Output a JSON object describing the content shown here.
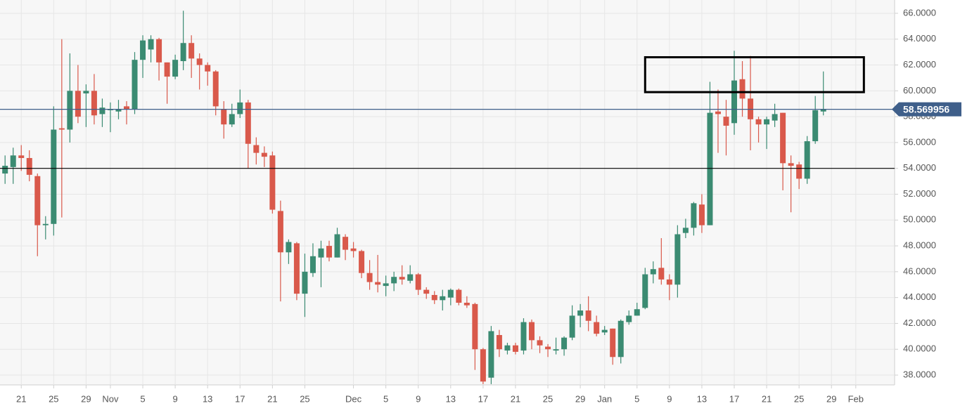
{
  "chart_data": {
    "type": "candlestick",
    "x": [
      "Oct 19",
      "Oct 20",
      "Oct 21",
      "Oct 22",
      "Oct 23",
      "Oct 24",
      "Oct 25",
      "Oct 26",
      "Oct 27",
      "Oct 28",
      "Oct 29",
      "Oct 30",
      "Oct 31",
      "Nov 1",
      "Nov 2",
      "Nov 3",
      "Nov 4",
      "Nov 5",
      "Nov 6",
      "Nov 7",
      "Nov 8",
      "Nov 9",
      "Nov 10",
      "Nov 11",
      "Nov 12",
      "Nov 13",
      "Nov 14",
      "Nov 15",
      "Nov 16",
      "Nov 17",
      "Nov 18",
      "Nov 19",
      "Nov 20",
      "Nov 21",
      "Nov 22",
      "Nov 23",
      "Nov 24",
      "Nov 25",
      "Nov 26",
      "Nov 27",
      "Nov 28",
      "Nov 29",
      "Nov 30",
      "Dec 1",
      "Dec 2",
      "Dec 3",
      "Dec 4",
      "Dec 5",
      "Dec 6",
      "Dec 7",
      "Dec 8",
      "Dec 9",
      "Dec 10",
      "Dec 11",
      "Dec 12",
      "Dec 13",
      "Dec 14",
      "Dec 15",
      "Dec 16",
      "Dec 17",
      "Dec 18",
      "Dec 19",
      "Dec 20",
      "Dec 21",
      "Dec 22",
      "Dec 23",
      "Dec 24",
      "Dec 25",
      "Dec 26",
      "Dec 27",
      "Dec 28",
      "Dec 29",
      "Dec 30",
      "Dec 31",
      "Jan 1",
      "Jan 2",
      "Jan 3",
      "Jan 4",
      "Jan 5",
      "Jan 6",
      "Jan 7",
      "Jan 8",
      "Jan 9",
      "Jan 10",
      "Jan 11",
      "Jan 12",
      "Jan 13",
      "Jan 14",
      "Jan 15",
      "Jan 16",
      "Jan 17",
      "Jan 18",
      "Jan 19",
      "Jan 20",
      "Jan 21",
      "Jan 22",
      "Jan 23",
      "Jan 24",
      "Jan 25",
      "Jan 26",
      "Jan 27",
      "Jan 28"
    ],
    "open": [
      53.6,
      54.1,
      55,
      54.8,
      53.4,
      49.6,
      49.7,
      57.1,
      57,
      60,
      59.8,
      60,
      58.2,
      58.5,
      58.4,
      58.8,
      58.6,
      62.4,
      63.2,
      64,
      62.2,
      61.1,
      62.3,
      63.7,
      62.5,
      62,
      61.5,
      58.6,
      57.4,
      58.2,
      59.1,
      55.8,
      55.2,
      55,
      50.7,
      47.5,
      48.2,
      44.3,
      45.9,
      47.1,
      48,
      47.1,
      48.7,
      47.8,
      47.6,
      45.9,
      45.2,
      44.9,
      45.1,
      45.6,
      45.3,
      45.8,
      44.6,
      44.2,
      43.8,
      44,
      44.6,
      43.6,
      43.5,
      40,
      37.8,
      41.1,
      39.9,
      40.3,
      39.9,
      42.1,
      40.7,
      40.2,
      39.9,
      40,
      40.9,
      42.6,
      43,
      42.1,
      41.3,
      41.6,
      39.4,
      42.1,
      42.6,
      43.2,
      45.8,
      46.3,
      45.4,
      45,
      49,
      49.4,
      51.2,
      49.6,
      58.4,
      58,
      57.5,
      60.9,
      59.4,
      57.8,
      57.4,
      57.7,
      58.3,
      54.4,
      54.3,
      53.2,
      56.1,
      58.4
    ],
    "high": [
      55,
      55.6,
      55.8,
      55.4,
      53.6,
      50.3,
      58.8,
      64,
      62.9,
      62,
      60.5,
      61.3,
      59.4,
      59.1,
      59.3,
      59.2,
      63,
      64.3,
      64.3,
      64.1,
      62.2,
      62.8,
      66.2,
      64.3,
      62.9,
      62.2,
      61.6,
      59.2,
      59,
      60.1,
      59.3,
      56.4,
      55.7,
      55.3,
      51.5,
      48.5,
      48.3,
      47.4,
      48.2,
      48.4,
      48.4,
      49.4,
      48.9,
      48.3,
      47.7,
      46.9,
      47.3,
      45.7,
      46,
      46.5,
      46.5,
      45.9,
      44.8,
      44.5,
      44.6,
      44.7,
      44.7,
      44.1,
      43.6,
      40.1,
      41.8,
      41.5,
      40.5,
      40.5,
      42.4,
      42.3,
      41,
      40.4,
      40.9,
      41,
      43.4,
      43.5,
      44.1,
      42.6,
      41.8,
      41.6,
      42.3,
      43,
      43.6,
      46.3,
      46.8,
      48.6,
      45.8,
      49.6,
      50.1,
      51.4,
      52,
      60.7,
      60.1,
      59.3,
      63.1,
      62.3,
      62.7,
      58,
      58,
      59,
      58.3,
      55,
      54.5,
      56.5,
      59.6,
      61.5
    ],
    "low": [
      52.8,
      52.8,
      53.8,
      53,
      47.2,
      48.5,
      48.8,
      50.2,
      56,
      57.5,
      57.2,
      57.4,
      57.2,
      56.8,
      57.8,
      57.4,
      58.2,
      61,
      62.2,
      60.8,
      59,
      60.9,
      61.6,
      61,
      60.1,
      60.4,
      58.1,
      56.3,
      57.2,
      57.9,
      54,
      54.3,
      54.1,
      50.5,
      43.7,
      46.6,
      43.8,
      42.5,
      45.6,
      44.8,
      46.8,
      47.1,
      46.9,
      47.1,
      45.5,
      44.6,
      44.4,
      44.1,
      44.5,
      45,
      45.1,
      44.2,
      43.9,
      43.5,
      43,
      43.4,
      43.4,
      43.2,
      38.4,
      37.3,
      37.3,
      39.4,
      39.6,
      39.6,
      39.6,
      40,
      39.7,
      39.4,
      39.6,
      39.5,
      40.7,
      41.7,
      41.4,
      41,
      41.1,
      38.8,
      38.9,
      41.9,
      42.6,
      43.1,
      45.1,
      45,
      43.8,
      44,
      48.6,
      48.8,
      49,
      49.6,
      55.2,
      55,
      56.6,
      58,
      55.4,
      56,
      55.5,
      57.2,
      52.3,
      50.6,
      52.4,
      52.8,
      55.9,
      58.1
    ],
    "close": [
      54.2,
      55,
      54.8,
      53.5,
      49.6,
      49.7,
      57,
      57,
      60,
      58,
      60,
      58.1,
      58.7,
      58.6,
      58.6,
      58.6,
      62.4,
      63.9,
      64,
      62.2,
      61.1,
      62.4,
      63.7,
      62.5,
      62,
      61.5,
      58.8,
      57.4,
      58.2,
      59.1,
      55.9,
      55.2,
      54.9,
      50.8,
      47.5,
      48.3,
      44.3,
      46,
      47.2,
      47.8,
      47.1,
      48.9,
      47.7,
      47.6,
      45.9,
      45.2,
      45,
      45.1,
      45.6,
      45.4,
      45.8,
      44.6,
      44.3,
      43.8,
      44.1,
      44.6,
      43.6,
      43.4,
      40,
      37.5,
      41.4,
      40,
      40.3,
      39.8,
      42.1,
      40.7,
      40.3,
      40,
      40,
      40.9,
      42.6,
      43,
      42.2,
      41.2,
      41.5,
      39.4,
      42.2,
      42.6,
      43.1,
      45.8,
      46.2,
      45.4,
      45,
      48.9,
      49.4,
      51.3,
      49.6,
      58.3,
      58.2,
      57.3,
      60.8,
      59.4,
      57.8,
      57.4,
      57.8,
      58.2,
      54.4,
      54.2,
      53.2,
      56.1,
      58.5,
      58.569956
    ],
    "up_color": "#3b8b72",
    "down_color": "#d9594b",
    "ylim": [
      37.24,
      67.03
    ],
    "yticks": [
      {
        "value": 38,
        "label": "38.0000"
      },
      {
        "value": 40,
        "label": "40.0000"
      },
      {
        "value": 42,
        "label": "42.0000"
      },
      {
        "value": 44,
        "label": "44.0000"
      },
      {
        "value": 46,
        "label": "46.0000"
      },
      {
        "value": 48,
        "label": "48.0000"
      },
      {
        "value": 50,
        "label": "50.0000"
      },
      {
        "value": 52,
        "label": "52.0000"
      },
      {
        "value": 54,
        "label": "54.0000"
      },
      {
        "value": 56,
        "label": "56.0000"
      },
      {
        "value": 58,
        "label": "58.0000"
      },
      {
        "value": 60,
        "label": "60.0000"
      },
      {
        "value": 62,
        "label": "62.0000"
      },
      {
        "value": 64,
        "label": "64.0000"
      },
      {
        "value": 66,
        "label": "66.0000"
      }
    ],
    "xticks": [
      {
        "value": "Oct 21",
        "label": "21"
      },
      {
        "value": "Oct 25",
        "label": "25"
      },
      {
        "value": "Oct 29",
        "label": "29"
      },
      {
        "value": "Nov 1",
        "label": "Nov"
      },
      {
        "value": "Nov 5",
        "label": "5"
      },
      {
        "value": "Nov 9",
        "label": "9"
      },
      {
        "value": "Nov 13",
        "label": "13"
      },
      {
        "value": "Nov 17",
        "label": "17"
      },
      {
        "value": "Nov 21",
        "label": "21"
      },
      {
        "value": "Nov 25",
        "label": "25"
      },
      {
        "value": "Dec 1",
        "label": "Dec"
      },
      {
        "value": "Dec 5",
        "label": "5"
      },
      {
        "value": "Dec 9",
        "label": "9"
      },
      {
        "value": "Dec 13",
        "label": "13"
      },
      {
        "value": "Dec 17",
        "label": "17"
      },
      {
        "value": "Dec 21",
        "label": "21"
      },
      {
        "value": "Dec 25",
        "label": "25"
      },
      {
        "value": "Dec 29",
        "label": "29"
      },
      {
        "value": "Jan 1",
        "label": "Jan"
      },
      {
        "value": "Jan 5",
        "label": "5"
      },
      {
        "value": "Jan 9",
        "label": "9"
      },
      {
        "value": "Jan 13",
        "label": "13"
      },
      {
        "value": "Jan 17",
        "label": "17"
      },
      {
        "value": "Jan 21",
        "label": "21"
      },
      {
        "value": "Jan 25",
        "label": "25"
      },
      {
        "value": "Jan 29",
        "label": "29"
      },
      {
        "value": "Feb 1",
        "label": "Feb"
      }
    ],
    "grid": true,
    "hlines": [
      {
        "value": 58.569956,
        "label": "58.569956",
        "color": "#3f5f8a"
      },
      {
        "value": 54,
        "color": "#000000"
      }
    ],
    "box": {
      "x": [
        "Jan 6",
        "Feb 2"
      ],
      "y": [
        59.9,
        62.6
      ],
      "color": "#000000"
    }
  }
}
